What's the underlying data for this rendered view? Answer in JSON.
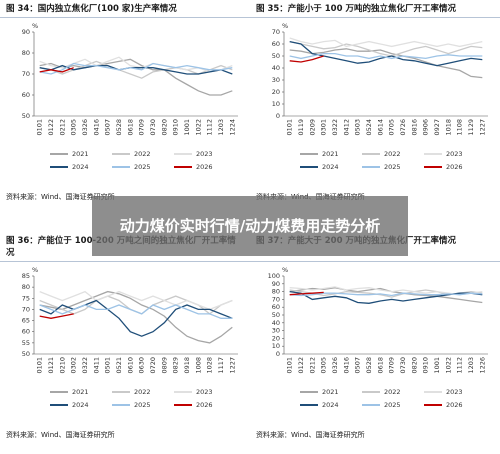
{
  "chart_data": [
    {
      "type": "line",
      "title": "图 34：国内独立焦化厂(100 家)生产率情况",
      "y_unit": "%",
      "source": "资料来源：Wind、国海证券研究所",
      "grid": false,
      "categories": [
        "0101",
        "0122",
        "0212",
        "0305",
        "0326",
        "0416",
        "0507",
        "0528",
        "0618",
        "0709",
        "0730",
        "0820",
        "0910",
        "1001",
        "1022",
        "1112",
        "1203",
        "1224"
      ],
      "ylim": [
        50,
        90
      ],
      "yticks": [
        50,
        60,
        70,
        80,
        90
      ],
      "series": [
        {
          "name": "2021",
          "color": "#a6a6a6",
          "values": [
            74,
            75,
            73,
            74,
            73,
            74,
            75,
            76,
            77,
            74,
            72,
            72,
            68,
            65,
            62,
            60,
            60,
            62
          ]
        },
        {
          "name": "2022",
          "color": "#c9c9c9",
          "values": [
            73,
            72,
            70,
            72,
            74,
            76,
            74,
            72,
            70,
            68,
            71,
            72,
            73,
            72,
            70,
            72,
            74,
            72
          ]
        },
        {
          "name": "2023",
          "color": "#e0e0e0",
          "values": [
            76,
            74,
            73,
            75,
            77,
            74,
            76,
            78,
            74,
            73,
            75,
            74,
            73,
            72,
            73,
            71,
            72,
            74
          ]
        },
        {
          "name": "2024",
          "color": "#1f4e79",
          "values": [
            73,
            72,
            74,
            72,
            73,
            74,
            74,
            72,
            73,
            73,
            73,
            72,
            71,
            70,
            70,
            71,
            72,
            70
          ]
        },
        {
          "name": "2025",
          "color": "#9dc3e6",
          "values": [
            71,
            70,
            72,
            75,
            74,
            74,
            73,
            72,
            73,
            72,
            75,
            74,
            73,
            74,
            73,
            72,
            72,
            73
          ]
        },
        {
          "name": "2026",
          "color": "#c00000",
          "values": [
            71,
            72,
            71,
            73,
            null,
            null,
            null,
            null,
            null,
            null,
            null,
            null,
            null,
            null,
            null,
            null,
            null,
            null
          ]
        }
      ]
    },
    {
      "type": "line",
      "title": "图 35：产能小于 100 万吨的独立焦化厂开工率情况",
      "y_unit": "%",
      "source": "资料来源：Wind、国海证券研究所",
      "grid": false,
      "categories": [
        "0101",
        "0119",
        "0209",
        "0301",
        "0322",
        "0412",
        "0503",
        "0524",
        "0614",
        "0705",
        "0726",
        "0816",
        "0906",
        "0927",
        "1018",
        "1108",
        "1129",
        "1227"
      ],
      "ylim": [
        0,
        70
      ],
      "yticks": [
        0,
        10,
        20,
        30,
        40,
        50,
        60,
        70
      ],
      "series": [
        {
          "name": "2021",
          "color": "#a6a6a6",
          "values": [
            55,
            54,
            52,
            53,
            55,
            56,
            54,
            54,
            55,
            52,
            50,
            48,
            45,
            42,
            40,
            38,
            33,
            32
          ]
        },
        {
          "name": "2022",
          "color": "#c9c9c9",
          "values": [
            62,
            60,
            58,
            56,
            57,
            60,
            58,
            55,
            52,
            50,
            53,
            56,
            58,
            55,
            52,
            55,
            58,
            57
          ]
        },
        {
          "name": "2023",
          "color": "#e0e0e0",
          "values": [
            65,
            62,
            60,
            62,
            63,
            58,
            60,
            62,
            60,
            58,
            60,
            62,
            60,
            58,
            60,
            58,
            60,
            62
          ]
        },
        {
          "name": "2024",
          "color": "#1f4e79",
          "values": [
            62,
            60,
            52,
            50,
            48,
            46,
            44,
            45,
            48,
            50,
            47,
            46,
            44,
            42,
            44,
            46,
            48,
            47
          ]
        },
        {
          "name": "2025",
          "color": "#9dc3e6",
          "values": [
            50,
            48,
            50,
            52,
            52,
            50,
            50,
            48,
            50,
            48,
            50,
            49,
            48,
            50,
            51,
            50,
            50,
            50
          ]
        },
        {
          "name": "2026",
          "color": "#c00000",
          "values": [
            46,
            45,
            47,
            50,
            null,
            null,
            null,
            null,
            null,
            null,
            null,
            null,
            null,
            null,
            null,
            null,
            null,
            null
          ]
        }
      ]
    },
    {
      "type": "line",
      "title": "图 36：产能位于 100-200 万吨之间的独立焦化厂开工率情况",
      "y_unit": "%",
      "source": "资料来源：Wind、国海证券研究所",
      "grid": false,
      "categories": [
        "0101",
        "0121",
        "0210",
        "0302",
        "0322",
        "0411",
        "0501",
        "0521",
        "0610",
        "0630",
        "0720",
        "0809",
        "0829",
        "0918",
        "1008",
        "1028",
        "1117",
        "1227"
      ],
      "ylim": [
        50,
        85
      ],
      "yticks": [
        50,
        55,
        60,
        65,
        70,
        75,
        80,
        85
      ],
      "series": [
        {
          "name": "2021",
          "color": "#a6a6a6",
          "values": [
            72,
            71,
            70,
            72,
            74,
            76,
            78,
            77,
            75,
            72,
            70,
            67,
            62,
            58,
            56,
            55,
            58,
            62
          ]
        },
        {
          "name": "2022",
          "color": "#c9c9c9",
          "values": [
            74,
            72,
            70,
            68,
            70,
            74,
            76,
            74,
            70,
            68,
            72,
            74,
            76,
            74,
            72,
            68,
            72,
            74
          ]
        },
        {
          "name": "2023",
          "color": "#e0e0e0",
          "values": [
            78,
            76,
            74,
            76,
            78,
            74,
            76,
            78,
            76,
            74,
            76,
            74,
            72,
            74,
            72,
            70,
            72,
            74
          ]
        },
        {
          "name": "2024",
          "color": "#1f4e79",
          "values": [
            70,
            68,
            72,
            70,
            72,
            74,
            70,
            66,
            60,
            58,
            60,
            64,
            70,
            72,
            70,
            70,
            68,
            66
          ]
        },
        {
          "name": "2025",
          "color": "#9dc3e6",
          "values": [
            72,
            70,
            68,
            70,
            72,
            70,
            70,
            72,
            70,
            68,
            72,
            70,
            72,
            70,
            68,
            68,
            66,
            66
          ]
        },
        {
          "name": "2026",
          "color": "#c00000",
          "values": [
            67,
            66,
            67,
            68,
            null,
            null,
            null,
            null,
            null,
            null,
            null,
            null,
            null,
            null,
            null,
            null,
            null,
            null
          ]
        }
      ]
    },
    {
      "type": "line",
      "title": "图 37：产能大于 200 万吨的独立焦化厂开工率情况",
      "y_unit": "%",
      "source": "资料来源：Wind、国海证券研究所",
      "grid": false,
      "categories": [
        "0101",
        "0122",
        "0212",
        "0305",
        "0326",
        "0416",
        "0507",
        "0528",
        "0618",
        "0709",
        "0730",
        "0820",
        "0910",
        "1001",
        "1022",
        "1112",
        "1203",
        "1226"
      ],
      "ylim": [
        0,
        100
      ],
      "yticks": [
        0,
        10,
        20,
        30,
        40,
        50,
        60,
        70,
        80,
        90,
        100
      ],
      "series": [
        {
          "name": "2021",
          "color": "#a6a6a6",
          "values": [
            80,
            82,
            84,
            83,
            85,
            82,
            80,
            82,
            84,
            80,
            78,
            76,
            75,
            74,
            72,
            70,
            68,
            66
          ]
        },
        {
          "name": "2022",
          "color": "#c9c9c9",
          "values": [
            82,
            80,
            78,
            75,
            77,
            80,
            79,
            78,
            76,
            73,
            77,
            80,
            82,
            80,
            76,
            78,
            80,
            78
          ]
        },
        {
          "name": "2023",
          "color": "#e0e0e0",
          "values": [
            85,
            84,
            82,
            84,
            86,
            82,
            84,
            85,
            82,
            80,
            82,
            80,
            78,
            80,
            78,
            76,
            78,
            80
          ]
        },
        {
          "name": "2024",
          "color": "#1f4e79",
          "values": [
            80,
            78,
            70,
            72,
            74,
            72,
            66,
            65,
            68,
            70,
            68,
            70,
            72,
            74,
            76,
            78,
            78,
            76
          ]
        },
        {
          "name": "2025",
          "color": "#9dc3e6",
          "values": [
            76,
            75,
            76,
            78,
            78,
            77,
            76,
            76,
            77,
            75,
            78,
            77,
            76,
            76,
            77,
            76,
            78,
            77
          ]
        },
        {
          "name": "2026",
          "color": "#c00000",
          "values": [
            76,
            77,
            78,
            79,
            null,
            null,
            null,
            null,
            null,
            null,
            null,
            null,
            null,
            null,
            null,
            null,
            null,
            null
          ]
        }
      ]
    }
  ],
  "banner": "动力煤价实时行情/动力煤费用走势分析"
}
